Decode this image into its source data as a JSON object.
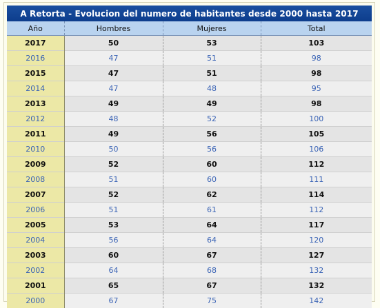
{
  "table": {
    "title": "A Retorta - Evolucion del numero de habitantes desde 2000 hasta 2017",
    "headers": [
      "Año",
      "Hombres",
      "Mujeres",
      "Total"
    ],
    "rows": [
      [
        "2017",
        "50",
        "53",
        "103"
      ],
      [
        "2016",
        "47",
        "51",
        "98"
      ],
      [
        "2015",
        "47",
        "51",
        "98"
      ],
      [
        "2014",
        "47",
        "48",
        "95"
      ],
      [
        "2013",
        "49",
        "49",
        "98"
      ],
      [
        "2012",
        "48",
        "52",
        "100"
      ],
      [
        "2011",
        "49",
        "56",
        "105"
      ],
      [
        "2010",
        "50",
        "56",
        "106"
      ],
      [
        "2009",
        "52",
        "60",
        "112"
      ],
      [
        "2008",
        "51",
        "60",
        "111"
      ],
      [
        "2007",
        "52",
        "62",
        "114"
      ],
      [
        "2006",
        "51",
        "61",
        "112"
      ],
      [
        "2005",
        "53",
        "64",
        "117"
      ],
      [
        "2004",
        "56",
        "64",
        "120"
      ],
      [
        "2003",
        "60",
        "67",
        "127"
      ],
      [
        "2002",
        "64",
        "68",
        "132"
      ],
      [
        "2001",
        "65",
        "67",
        "132"
      ],
      [
        "2000",
        "67",
        "75",
        "142"
      ]
    ]
  },
  "colors": {
    "title_bg": "#0d3d8c",
    "header_bg": "#b9d3ef",
    "year_bg": "#ece8a6",
    "light_row_text": "#3a63b5"
  }
}
